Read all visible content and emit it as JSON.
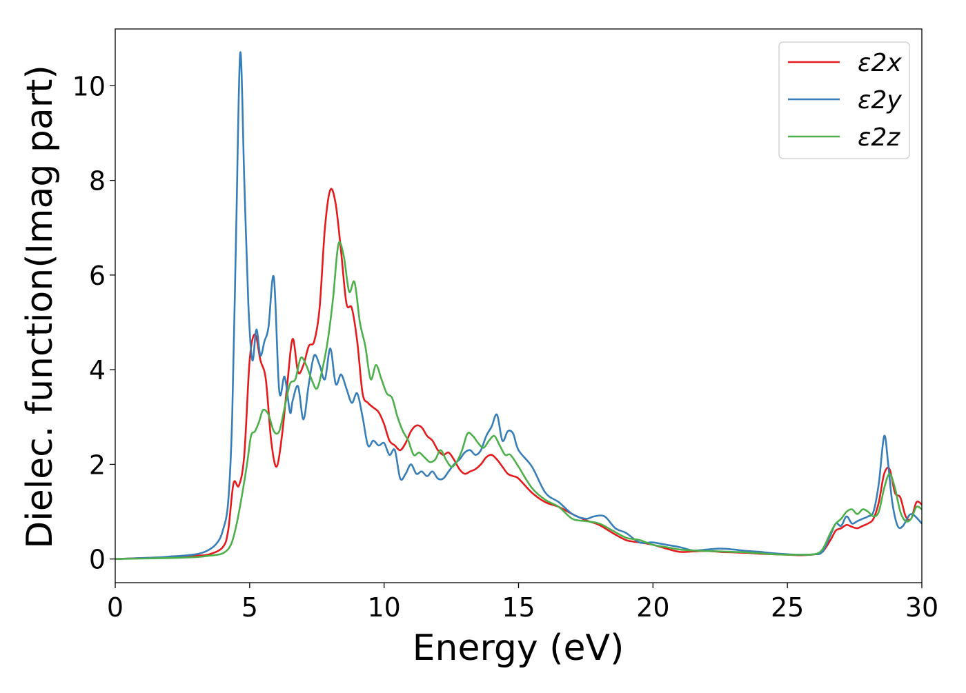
{
  "chart_data": {
    "type": "line",
    "title": "",
    "xlabel": "Energy (eV)",
    "ylabel": "Dielec. function(Imag part)",
    "xlim": [
      0,
      30
    ],
    "ylim": [
      -0.5,
      11.2
    ],
    "xticks": [
      0,
      5,
      10,
      15,
      20,
      25,
      30
    ],
    "yticks": [
      0,
      2,
      4,
      6,
      8,
      10
    ],
    "xtick_labels": [
      "0",
      "5",
      "10",
      "15",
      "20",
      "25",
      "30"
    ],
    "ytick_labels": [
      "0",
      "2",
      "4",
      "6",
      "8",
      "10"
    ],
    "grid": false,
    "legend_position": "top-right",
    "series": [
      {
        "name": "ε2x",
        "color": "#e41a1c",
        "x": [
          0,
          1,
          2,
          3,
          3.5,
          4,
          4.2,
          4.4,
          4.6,
          4.8,
          5.0,
          5.2,
          5.4,
          5.6,
          5.8,
          6.0,
          6.2,
          6.4,
          6.6,
          6.8,
          7.0,
          7.2,
          7.4,
          7.6,
          7.8,
          8.0,
          8.2,
          8.4,
          8.6,
          8.8,
          9.0,
          9.2,
          9.4,
          9.6,
          9.8,
          10.0,
          10.2,
          10.4,
          10.6,
          10.8,
          11.0,
          11.2,
          11.4,
          11.6,
          11.8,
          12.0,
          12.2,
          12.4,
          12.6,
          12.8,
          13.0,
          13.2,
          13.4,
          13.6,
          13.8,
          14.0,
          14.2,
          14.4,
          14.6,
          14.8,
          15.0,
          15.5,
          16,
          16.5,
          17,
          17.5,
          18,
          18.5,
          19,
          19.5,
          20,
          20.5,
          21,
          21.5,
          22,
          22.5,
          23,
          23.5,
          24,
          24.5,
          25,
          25.5,
          26,
          26.3,
          26.6,
          26.8,
          27.0,
          27.2,
          27.4,
          27.6,
          27.8,
          28.0,
          28.2,
          28.4,
          28.6,
          28.8,
          29.0,
          29.2,
          29.4,
          29.6,
          29.8,
          30.0
        ],
        "y": [
          0,
          0.02,
          0.04,
          0.07,
          0.1,
          0.25,
          0.6,
          1.6,
          1.55,
          2.2,
          4.2,
          4.75,
          4.2,
          3.8,
          2.5,
          1.95,
          2.6,
          3.7,
          4.65,
          3.95,
          4.1,
          4.5,
          4.6,
          5.3,
          7.0,
          7.8,
          7.5,
          6.5,
          5.4,
          5.3,
          4.6,
          3.5,
          3.3,
          3.2,
          3.1,
          2.85,
          2.5,
          2.4,
          2.3,
          2.45,
          2.7,
          2.82,
          2.78,
          2.6,
          2.5,
          2.3,
          2.2,
          2.25,
          2.1,
          1.9,
          1.8,
          1.85,
          1.9,
          2.0,
          2.15,
          2.2,
          2.1,
          1.95,
          1.8,
          1.75,
          1.7,
          1.4,
          1.2,
          1.1,
          0.95,
          0.82,
          0.72,
          0.55,
          0.4,
          0.35,
          0.3,
          0.22,
          0.15,
          0.16,
          0.17,
          0.15,
          0.14,
          0.13,
          0.11,
          0.1,
          0.09,
          0.08,
          0.1,
          0.15,
          0.4,
          0.6,
          0.65,
          0.72,
          0.68,
          0.65,
          0.7,
          0.75,
          0.85,
          1.2,
          1.8,
          1.9,
          1.4,
          1.3,
          0.9,
          0.85,
          1.2,
          1.15
        ]
      },
      {
        "name": "ε2y",
        "color": "#377eb8",
        "x": [
          0,
          1,
          2,
          3,
          3.5,
          3.8,
          4.0,
          4.2,
          4.35,
          4.5,
          4.65,
          4.8,
          4.95,
          5.1,
          5.25,
          5.4,
          5.55,
          5.7,
          5.9,
          6.1,
          6.3,
          6.5,
          6.6,
          6.8,
          7.0,
          7.2,
          7.4,
          7.6,
          7.8,
          8.0,
          8.2,
          8.4,
          8.6,
          8.8,
          9.0,
          9.2,
          9.4,
          9.6,
          9.8,
          10.0,
          10.2,
          10.4,
          10.6,
          10.8,
          11.0,
          11.2,
          11.4,
          11.6,
          11.8,
          12.0,
          12.2,
          12.4,
          12.6,
          12.8,
          13.0,
          13.2,
          13.4,
          13.6,
          13.8,
          14.0,
          14.2,
          14.4,
          14.6,
          14.8,
          15.0,
          15.5,
          16,
          16.5,
          17,
          17.5,
          17.8,
          18.2,
          18.6,
          19,
          19.5,
          20,
          20.5,
          21,
          21.5,
          22,
          22.5,
          23,
          23.5,
          24,
          24.5,
          25,
          25.5,
          26,
          26.3,
          26.6,
          26.8,
          27.0,
          27.2,
          27.4,
          27.6,
          27.8,
          28.0,
          28.2,
          28.4,
          28.6,
          28.75,
          28.9,
          29.1,
          29.3,
          29.6,
          30.0
        ],
        "y": [
          0,
          0.02,
          0.05,
          0.1,
          0.2,
          0.35,
          0.6,
          1.2,
          3.0,
          7.0,
          10.7,
          8.0,
          5.4,
          4.2,
          4.85,
          4.3,
          4.6,
          4.9,
          5.95,
          3.55,
          3.85,
          3.1,
          3.35,
          3.65,
          2.95,
          3.7,
          4.3,
          4.1,
          3.8,
          4.45,
          3.7,
          3.9,
          3.6,
          3.3,
          3.5,
          3.0,
          2.4,
          2.5,
          2.4,
          2.45,
          2.2,
          2.3,
          1.7,
          1.8,
          2.0,
          1.8,
          1.85,
          1.75,
          1.85,
          1.7,
          1.7,
          1.85,
          2.0,
          2.1,
          2.25,
          2.3,
          2.2,
          2.3,
          2.6,
          2.8,
          3.05,
          2.5,
          2.7,
          2.65,
          2.3,
          1.95,
          1.4,
          1.2,
          0.95,
          0.85,
          0.9,
          0.9,
          0.65,
          0.55,
          0.35,
          0.35,
          0.3,
          0.25,
          0.18,
          0.2,
          0.22,
          0.2,
          0.17,
          0.15,
          0.12,
          0.1,
          0.09,
          0.1,
          0.15,
          0.5,
          0.75,
          0.7,
          0.9,
          0.75,
          0.8,
          0.85,
          0.9,
          1.0,
          1.6,
          2.6,
          2.0,
          1.2,
          0.7,
          0.7,
          0.95,
          0.75
        ]
      },
      {
        "name": "ε2z",
        "color": "#4daf4a",
        "x": [
          0,
          1,
          2,
          3,
          3.5,
          4,
          4.3,
          4.5,
          4.7,
          4.9,
          5.05,
          5.2,
          5.35,
          5.5,
          5.7,
          5.9,
          6.1,
          6.3,
          6.5,
          6.7,
          6.9,
          7.1,
          7.3,
          7.5,
          7.7,
          7.9,
          8.1,
          8.3,
          8.5,
          8.7,
          8.9,
          9.1,
          9.3,
          9.5,
          9.7,
          9.9,
          10.1,
          10.3,
          10.5,
          10.7,
          10.9,
          11.1,
          11.3,
          11.5,
          11.7,
          11.9,
          12.1,
          12.3,
          12.5,
          12.7,
          12.9,
          13.1,
          13.3,
          13.5,
          13.7,
          13.9,
          14.1,
          14.3,
          14.5,
          14.7,
          15,
          15.5,
          16,
          16.5,
          17,
          17.5,
          18,
          18.5,
          19,
          19.5,
          20,
          20.5,
          21,
          21.5,
          22,
          22.5,
          23,
          23.5,
          24,
          24.5,
          25,
          25.5,
          26,
          26.3,
          26.6,
          26.8,
          27.0,
          27.2,
          27.4,
          27.6,
          27.8,
          28.0,
          28.2,
          28.4,
          28.6,
          28.8,
          29.0,
          29.2,
          29.4,
          29.6,
          29.8,
          30.0
        ],
        "y": [
          0,
          0.01,
          0.02,
          0.04,
          0.07,
          0.12,
          0.3,
          0.7,
          1.3,
          2.0,
          2.6,
          2.7,
          2.9,
          3.15,
          3.05,
          2.7,
          2.7,
          3.2,
          3.7,
          3.8,
          4.25,
          4.1,
          3.8,
          3.6,
          4.0,
          4.6,
          5.5,
          6.65,
          6.4,
          5.65,
          5.85,
          5.0,
          4.5,
          3.8,
          4.1,
          3.8,
          3.5,
          3.4,
          3.0,
          2.7,
          2.5,
          2.2,
          2.25,
          2.15,
          2.05,
          2.1,
          2.3,
          2.1,
          1.95,
          2.05,
          2.3,
          2.65,
          2.6,
          2.45,
          2.35,
          2.5,
          2.6,
          2.4,
          2.2,
          2.2,
          1.95,
          1.5,
          1.25,
          1.1,
          0.85,
          0.8,
          0.75,
          0.6,
          0.45,
          0.4,
          0.3,
          0.25,
          0.2,
          0.18,
          0.17,
          0.16,
          0.15,
          0.14,
          0.12,
          0.1,
          0.09,
          0.09,
          0.1,
          0.2,
          0.55,
          0.75,
          0.85,
          1.0,
          1.05,
          0.95,
          1.05,
          1.0,
          0.9,
          1.0,
          1.5,
          1.8,
          1.5,
          1.0,
          0.8,
          0.85,
          1.1,
          1.05
        ]
      }
    ]
  }
}
